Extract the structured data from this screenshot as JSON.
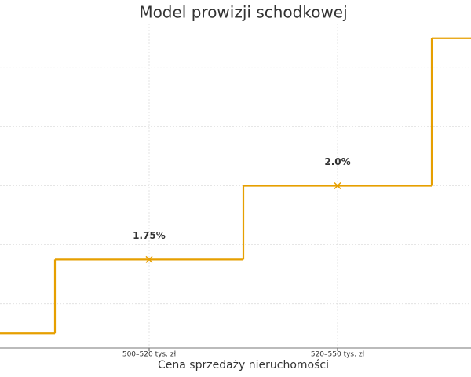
{
  "chart_data": {
    "type": "step",
    "title": "Model prowizji schodkowej",
    "x_label": "Cena sprzedaży nieruchomości",
    "categories": [
      null,
      "500–520 tys. zł",
      "520–550 tys. zł",
      null
    ],
    "values": [
      1.5,
      1.75,
      2.0,
      2.5
    ],
    "value_labels": [
      null,
      "1.75%",
      "2.0%",
      null
    ],
    "color": "#e69f00",
    "ylim": [
      1.45,
      2.55
    ],
    "yticks": [
      1.6,
      1.8,
      2.0,
      2.2,
      2.4
    ],
    "grid": true
  }
}
